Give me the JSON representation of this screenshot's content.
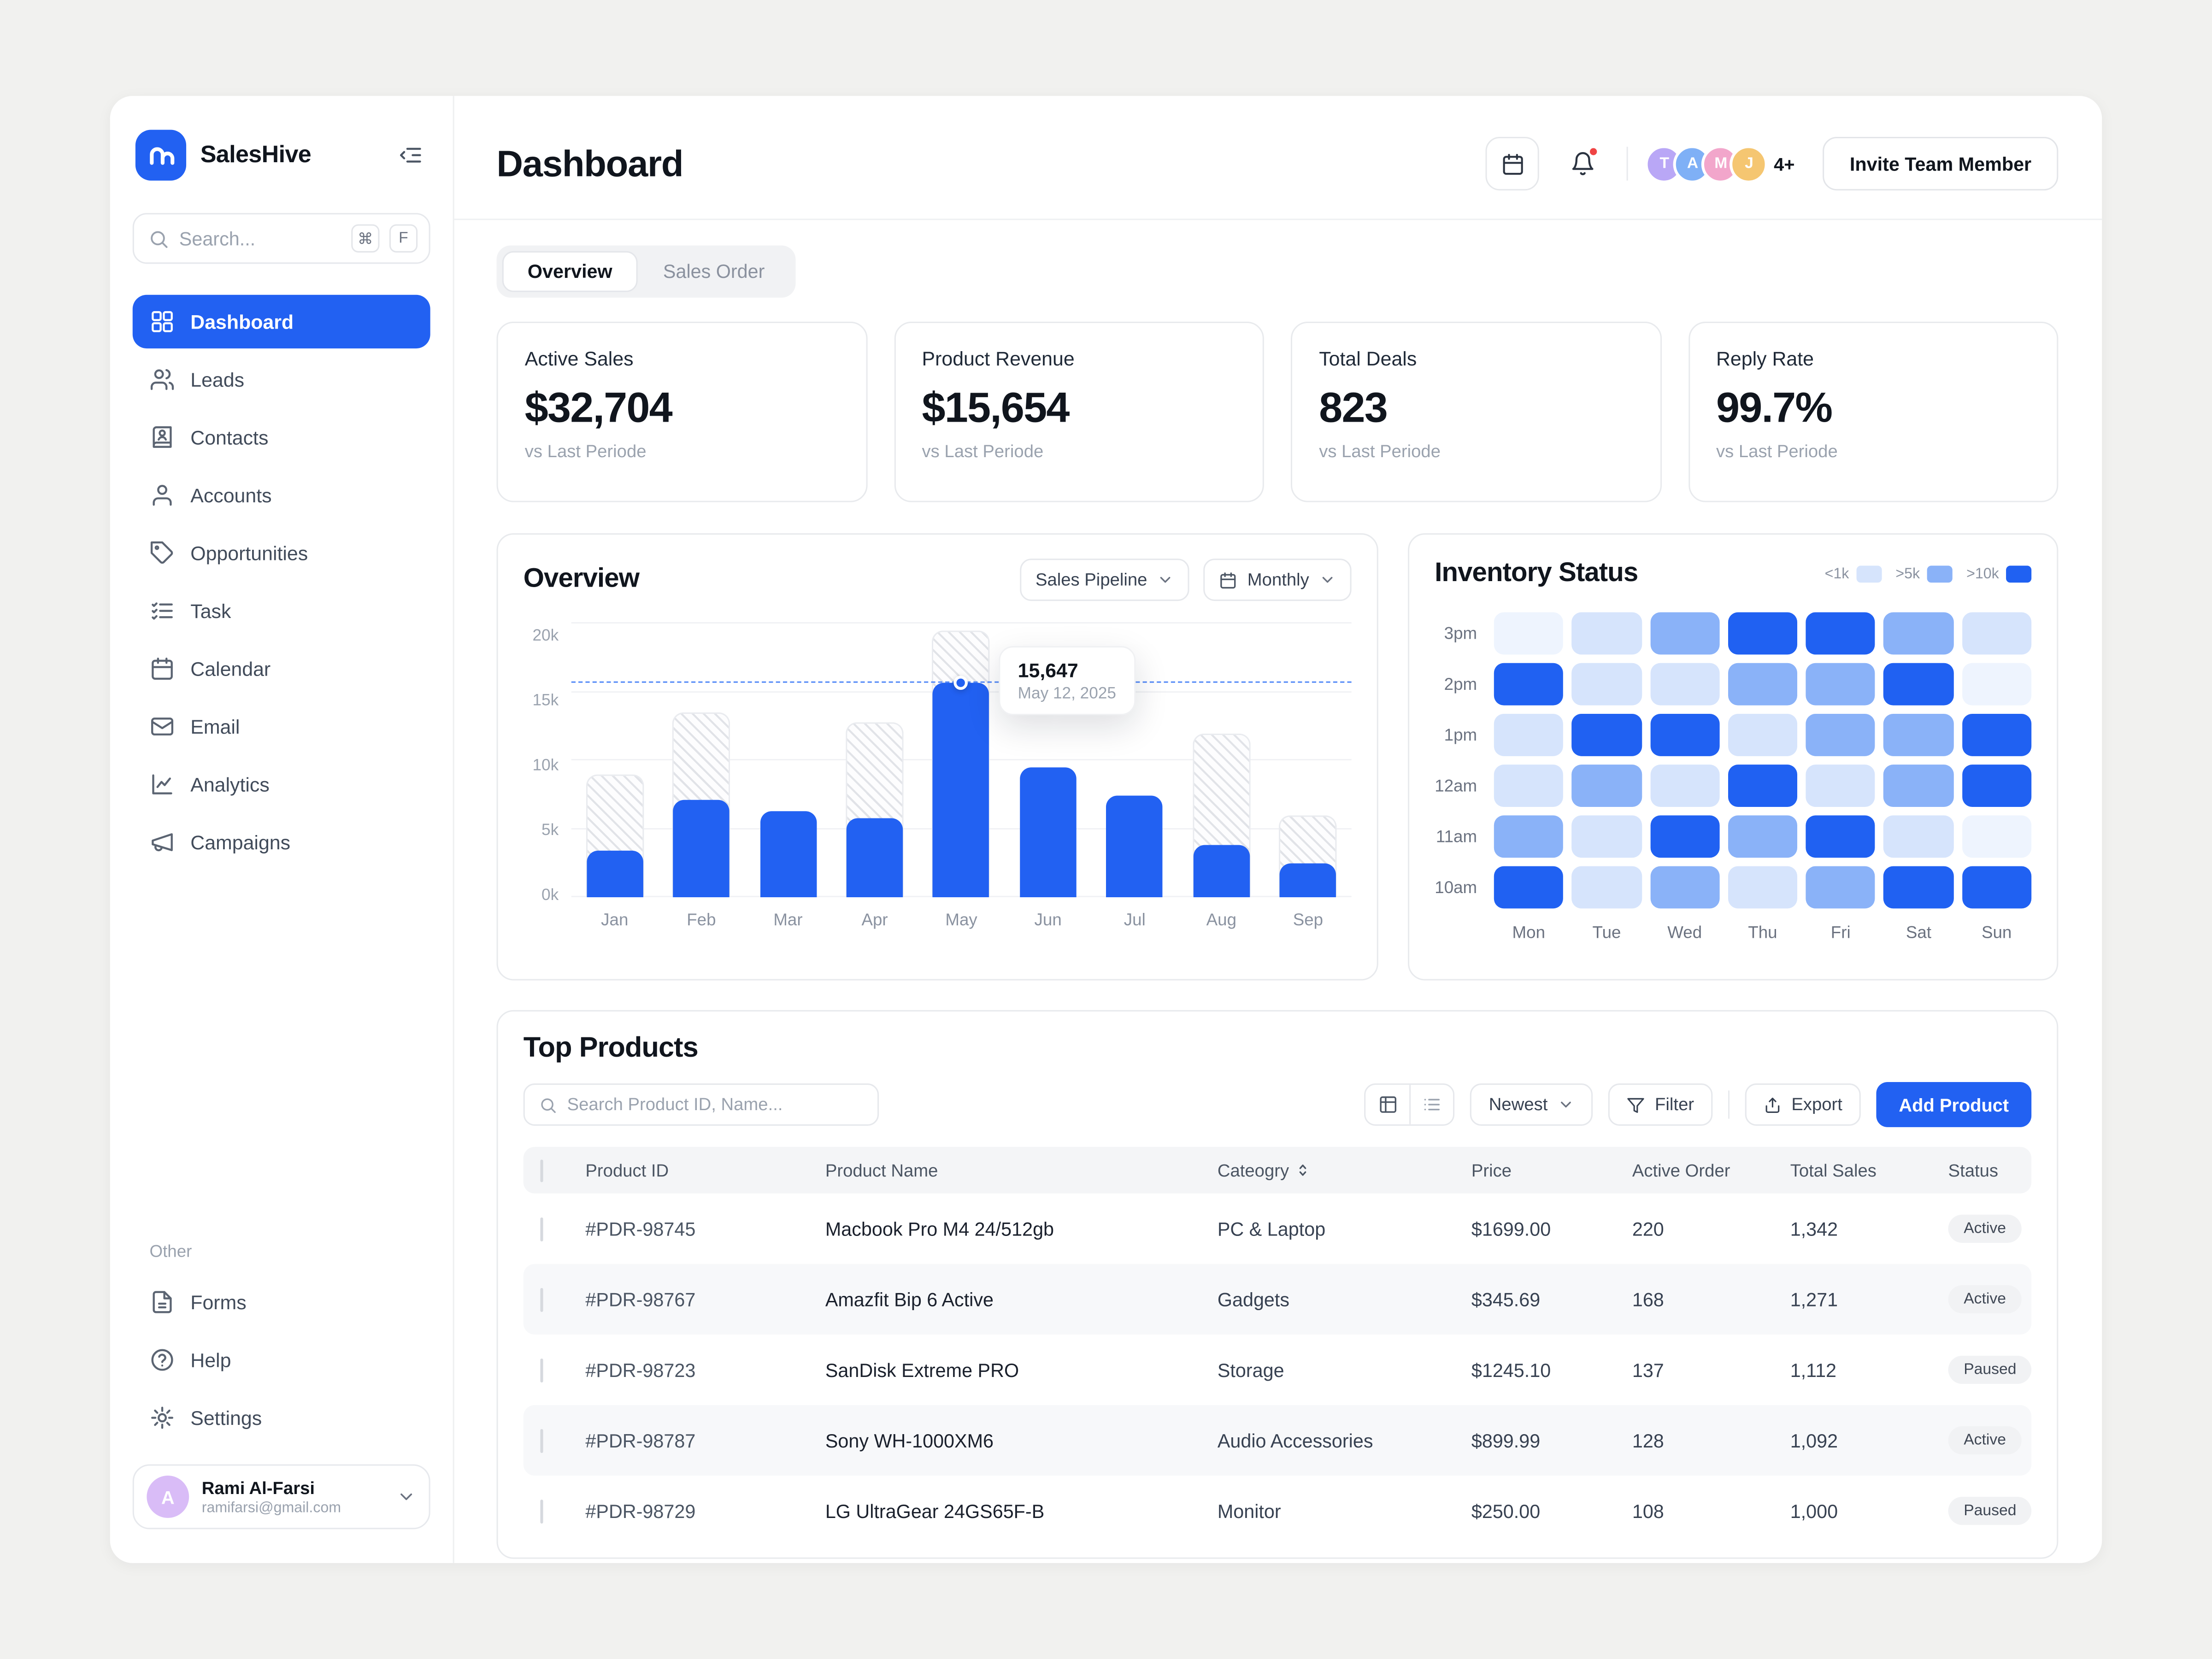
{
  "app": {
    "name": "SalesHive"
  },
  "sidebar": {
    "search": {
      "placeholder": "Search...",
      "shortcut_mod": "⌘",
      "shortcut_key": "F"
    },
    "items": [
      {
        "label": "Dashboard"
      },
      {
        "label": "Leads"
      },
      {
        "label": "Contacts"
      },
      {
        "label": "Accounts"
      },
      {
        "label": "Opportunities"
      },
      {
        "label": "Task"
      },
      {
        "label": "Calendar"
      },
      {
        "label": "Email"
      },
      {
        "label": "Analytics"
      },
      {
        "label": "Campaigns"
      }
    ],
    "other_label": "Other",
    "other_items": [
      {
        "label": "Forms"
      },
      {
        "label": "Help"
      },
      {
        "label": "Settings"
      }
    ],
    "profile": {
      "initial": "A",
      "name": "Rami Al-Farsi",
      "email": "ramifarsi@gmail.com"
    }
  },
  "header": {
    "title": "Dashboard",
    "avatars": [
      {
        "initial": "T"
      },
      {
        "initial": "A"
      },
      {
        "initial": "M"
      },
      {
        "initial": "J"
      }
    ],
    "avatars_more": "4+",
    "invite_label": "Invite Team Member"
  },
  "tabs": [
    {
      "label": "Overview"
    },
    {
      "label": "Sales Order"
    }
  ],
  "stats": [
    {
      "title": "Active Sales",
      "value": "$32,704",
      "sub": "vs Last Periode"
    },
    {
      "title": "Product Revenue",
      "value": "$15,654",
      "sub": "vs Last Periode"
    },
    {
      "title": "Total Deals",
      "value": "823",
      "sub": "vs Last Periode"
    },
    {
      "title": "Reply Rate",
      "value": "99.7%",
      "sub": "vs Last Periode"
    }
  ],
  "overview_panel": {
    "title": "Overview",
    "pipeline_label": "Sales Pipeline",
    "period_label": "Monthly"
  },
  "inventory_panel": {
    "title": "Inventory Status"
  },
  "products": {
    "title": "Top Products",
    "search_placeholder": "Search Product ID, Name...",
    "sort_label": "Newest",
    "filter_label": "Filter",
    "export_label": "Export",
    "add_label": "Add Product",
    "columns": [
      "Product ID",
      "Product Name",
      "Cateogry",
      "Price",
      "Active Order",
      "Total Sales",
      "Status"
    ],
    "rows": [
      {
        "id": "#PDR-98745",
        "name": "Macbook Pro M4 24/512gb",
        "category": "PC & Laptop",
        "price": "$1699.00",
        "active_order": "220",
        "total_sales": "1,342",
        "status": "Active"
      },
      {
        "id": "#PDR-98767",
        "name": "Amazfit Bip 6 Active",
        "category": "Gadgets",
        "price": "$345.69",
        "active_order": "168",
        "total_sales": "1,271",
        "status": "Active"
      },
      {
        "id": "#PDR-98723",
        "name": "SanDisk Extreme PRO",
        "category": "Storage",
        "price": "$1245.10",
        "active_order": "137",
        "total_sales": "1,112",
        "status": "Paused"
      },
      {
        "id": "#PDR-98787",
        "name": "Sony WH-1000XM6",
        "category": "Audio Accessories",
        "price": "$899.99",
        "active_order": "128",
        "total_sales": "1,092",
        "status": "Active"
      },
      {
        "id": "#PDR-98729",
        "name": "LG UltraGear 24GS65F-B",
        "category": "Monitor",
        "price": "$250.00",
        "active_order": "108",
        "total_sales": "1,000",
        "status": "Paused"
      }
    ]
  },
  "colors": {
    "accent": "#2261f2",
    "heatmap_light": "#d6e4fc",
    "heatmap_mid": "#8ab2f8",
    "heatmap_dark": "#2061f2"
  },
  "chart_data": [
    {
      "type": "bar",
      "title": "Overview",
      "categories": [
        "Jan",
        "Feb",
        "Mar",
        "Apr",
        "May",
        "Jun",
        "Jul",
        "Aug",
        "Sep"
      ],
      "series": [
        {
          "name": "actual",
          "values": [
            3400,
            7100,
            6300,
            5800,
            15647,
            9500,
            7400,
            3800,
            2500
          ]
        },
        {
          "name": "projected",
          "values": [
            9000,
            13500,
            0,
            12800,
            19500,
            0,
            0,
            12000,
            6000
          ]
        }
      ],
      "ylim": [
        0,
        20000
      ],
      "yticks": [
        "0k",
        "5k",
        "10k",
        "15k",
        "20k"
      ],
      "grid": true,
      "highlight": {
        "category": "May",
        "value": "15,647",
        "value_num": 15647,
        "date": "May 12, 2025"
      }
    },
    {
      "type": "heatmap",
      "title": "Inventory Status",
      "rows": [
        "3pm",
        "2pm",
        "1pm",
        "12am",
        "11am",
        "10am"
      ],
      "columns": [
        "Mon",
        "Tue",
        "Wed",
        "Thu",
        "Fri",
        "Sat",
        "Sun"
      ],
      "legend": [
        "<1k",
        ">5k",
        ">10k"
      ],
      "values": [
        [
          0,
          1,
          2,
          3,
          3,
          2,
          1
        ],
        [
          3,
          1,
          1,
          2,
          2,
          3,
          0
        ],
        [
          1,
          3,
          3,
          1,
          2,
          2,
          3
        ],
        [
          1,
          2,
          1,
          3,
          1,
          2,
          3
        ],
        [
          2,
          1,
          3,
          2,
          3,
          1,
          0
        ],
        [
          3,
          1,
          2,
          1,
          2,
          3,
          3
        ]
      ]
    }
  ]
}
